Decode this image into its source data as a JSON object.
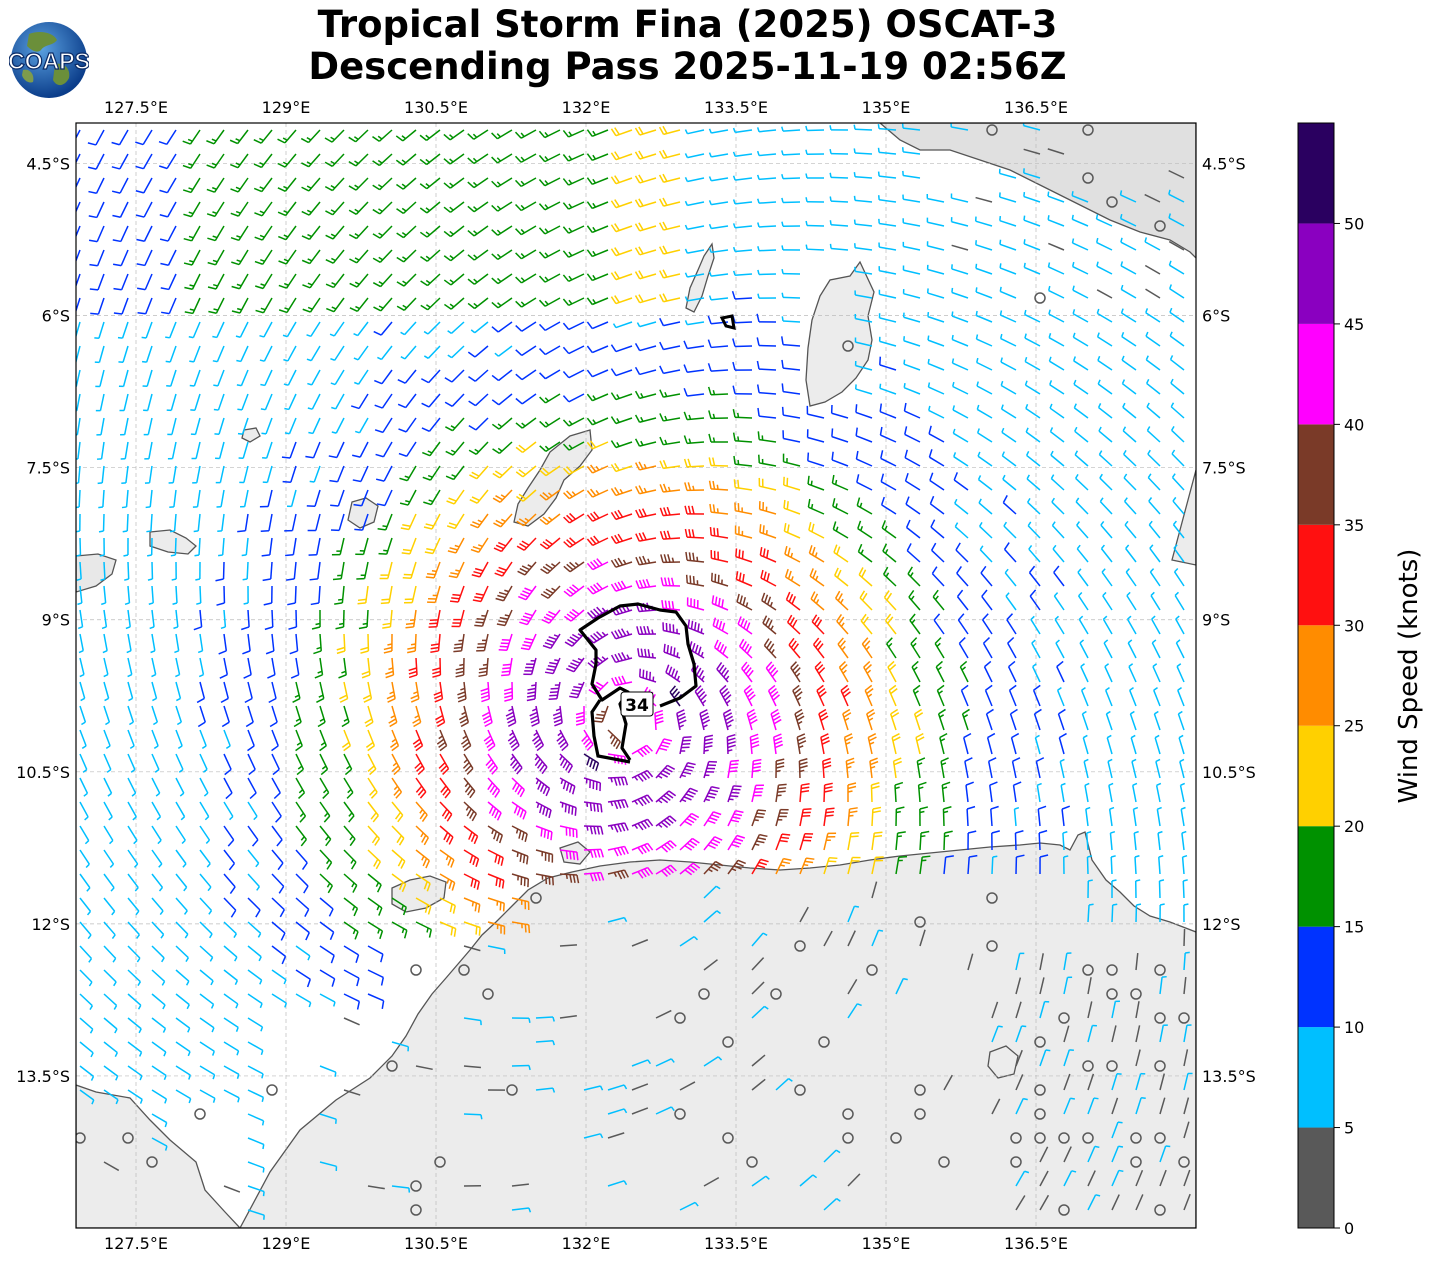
{
  "title": {
    "line1": "Tropical Storm Fina (2025) OSCAT-3",
    "line2": "Descending Pass 2025-11-19 02:56Z"
  },
  "logo": {
    "text": "COAPS",
    "icon": "globe-icon"
  },
  "map": {
    "extent": {
      "lon_min": 126.9,
      "lon_max": 138.1,
      "lat_min": -15.0,
      "lat_max": -4.1
    },
    "lon_ticks": [
      127.5,
      129.0,
      130.5,
      132.0,
      133.5,
      135.0,
      136.5
    ],
    "lon_labels": [
      "127.5°E",
      "129°E",
      "130.5°E",
      "132°E",
      "133.5°E",
      "135°E",
      "136.5°E"
    ],
    "lat_ticks": [
      -4.5,
      -6.0,
      -7.5,
      -9.0,
      -10.5,
      -12.0,
      -13.5
    ],
    "lat_labels": [
      "4.5°S",
      "6°S",
      "7.5°S",
      "9°S",
      "10.5°S",
      "12°S",
      "13.5°S"
    ],
    "gridlines": true,
    "center": {
      "lon": 132.4,
      "lat": -10.0
    },
    "contour_label": "34",
    "colors": {
      "land": "#ececec",
      "coast": "#555555",
      "grid": "#bbbbbb"
    }
  },
  "colorbar": {
    "label": "Wind Speed (knots)",
    "ticks": [
      "0",
      "5",
      "10",
      "15",
      "20",
      "25",
      "30",
      "35",
      "40",
      "45",
      "50"
    ],
    "bins": [
      {
        "min": 0,
        "max": 5,
        "color": "#595959"
      },
      {
        "min": 5,
        "max": 10,
        "color": "#00bfff"
      },
      {
        "min": 10,
        "max": 15,
        "color": "#0033ff"
      },
      {
        "min": 15,
        "max": 20,
        "color": "#009100"
      },
      {
        "min": 20,
        "max": 25,
        "color": "#ffd000"
      },
      {
        "min": 25,
        "max": 30,
        "color": "#ff8c00"
      },
      {
        "min": 30,
        "max": 35,
        "color": "#ff1010"
      },
      {
        "min": 35,
        "max": 40,
        "color": "#7a3a28"
      },
      {
        "min": 40,
        "max": 45,
        "color": "#ff00ff"
      },
      {
        "min": 45,
        "max": 50,
        "color": "#8a00c0"
      },
      {
        "min": 50,
        "max": 55,
        "color": "#2a0060"
      }
    ]
  }
}
